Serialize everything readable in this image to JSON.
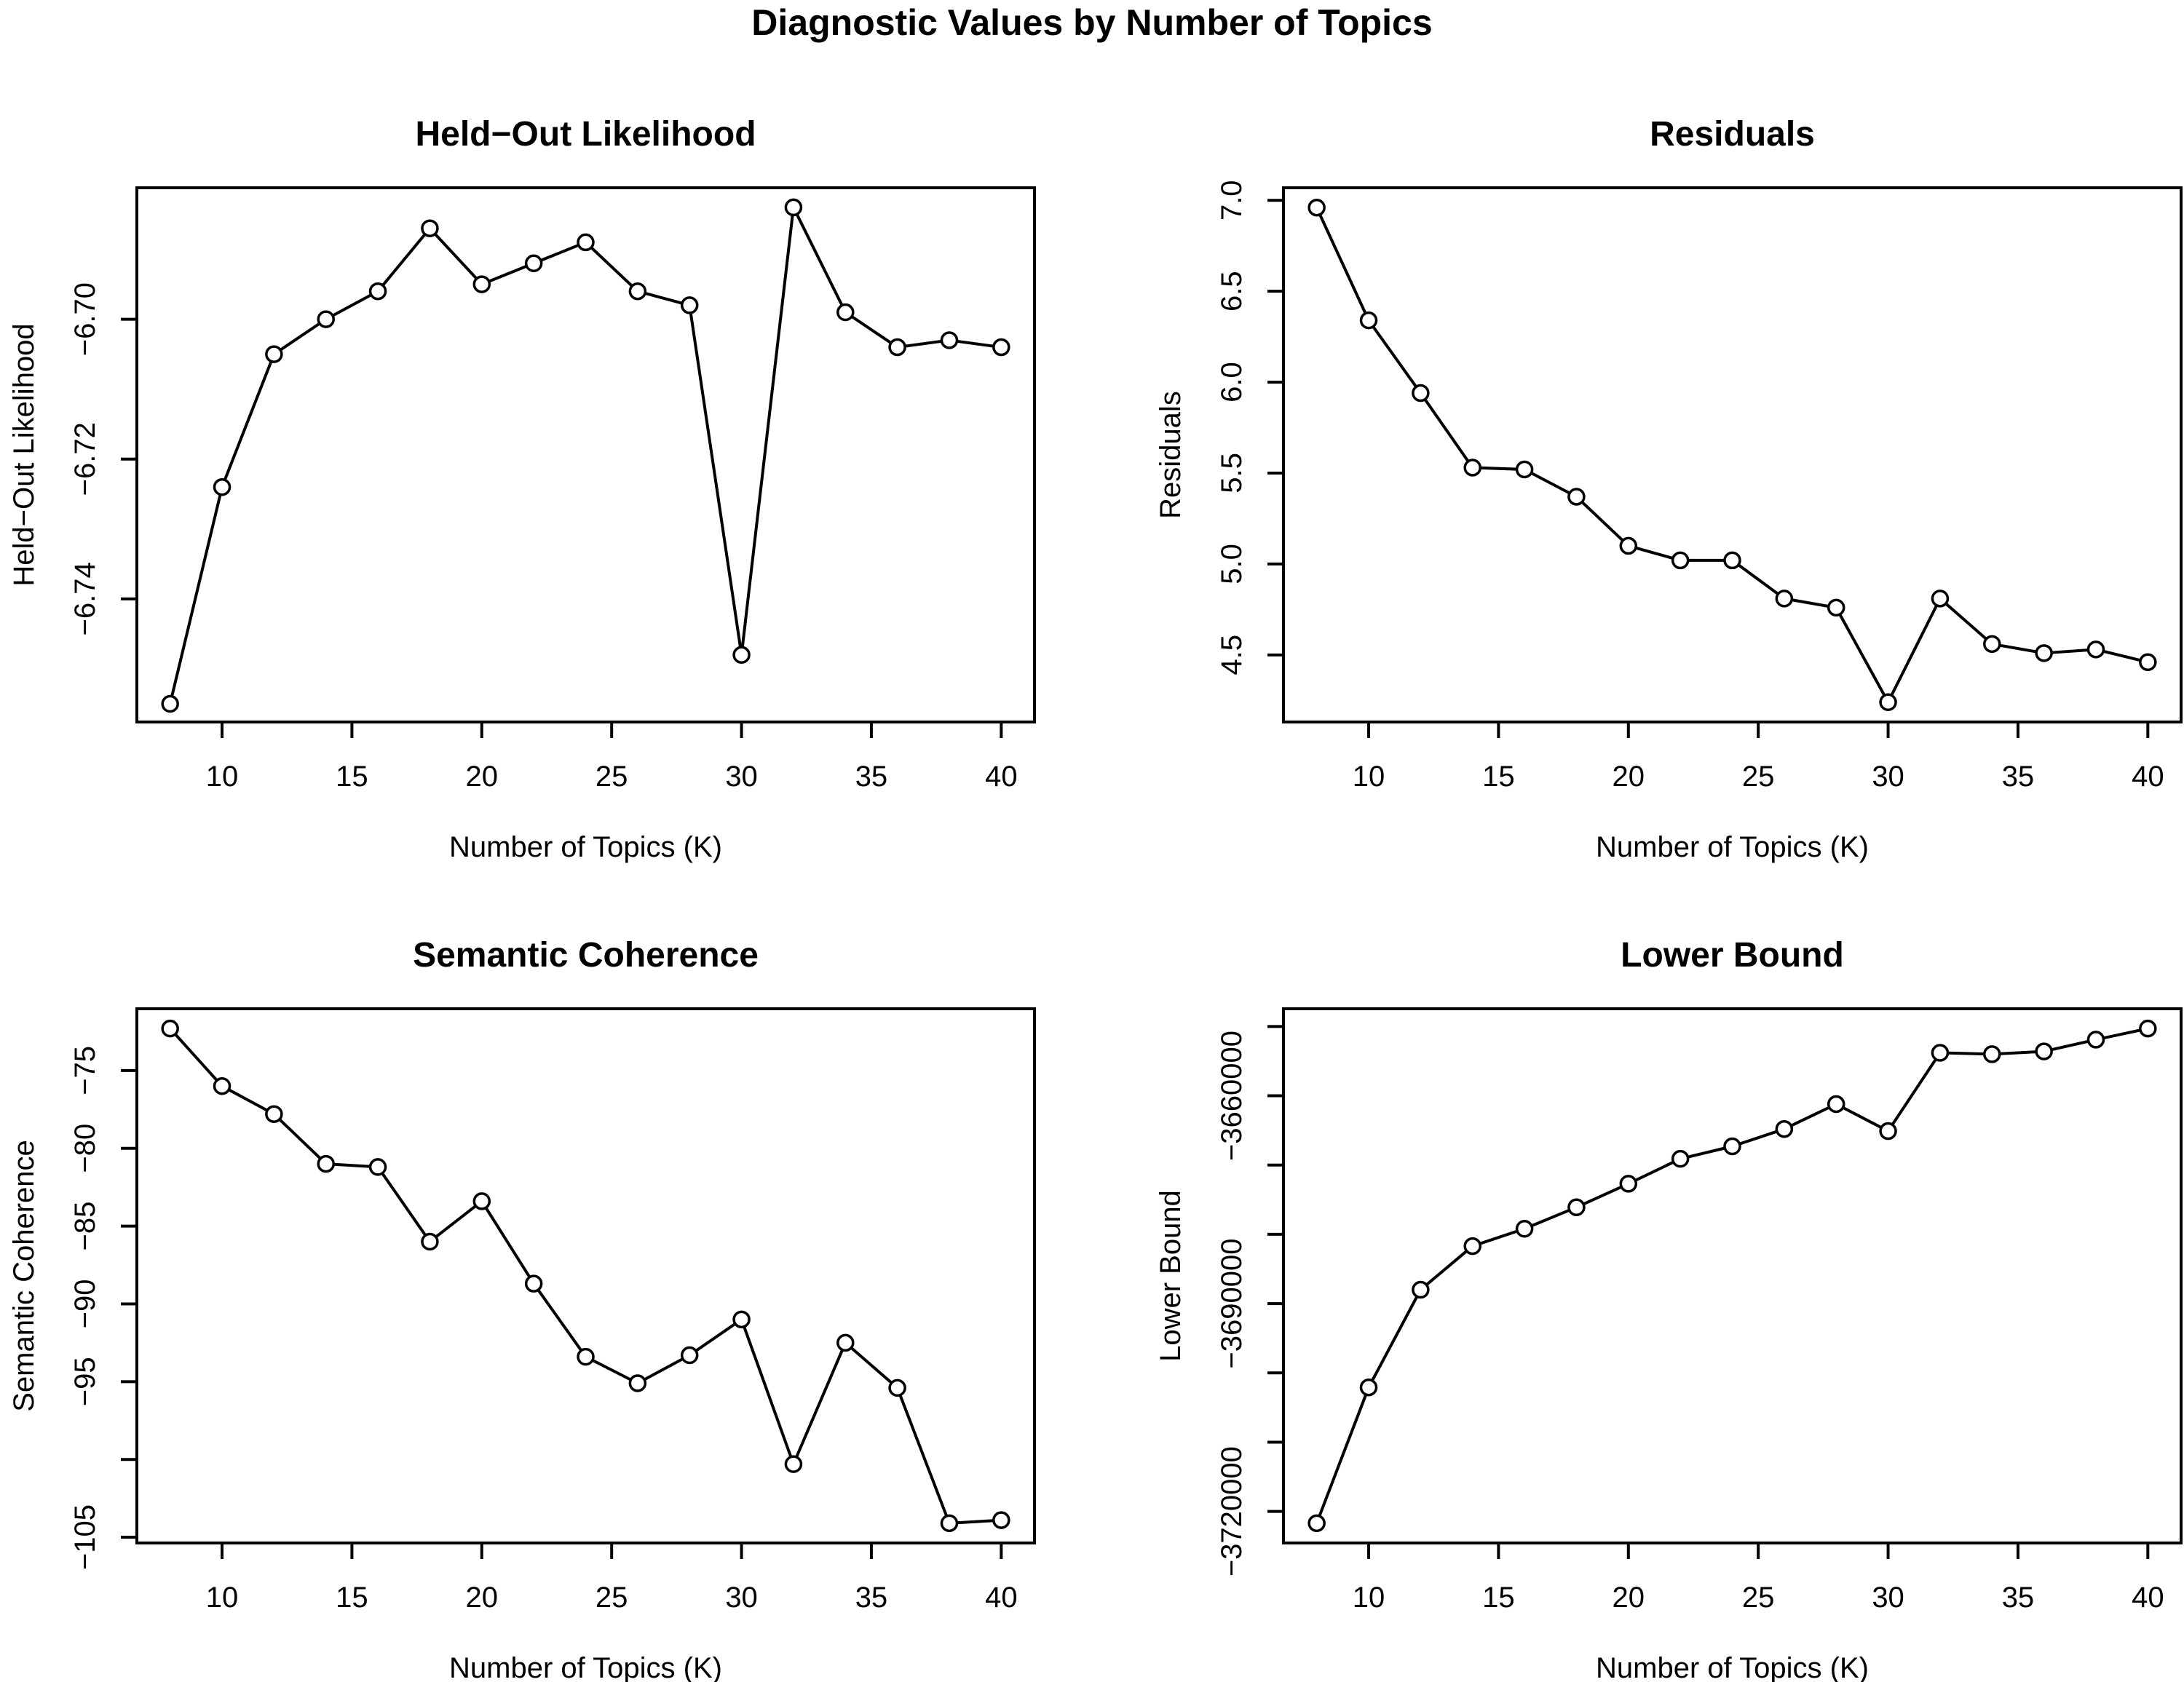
{
  "main_title": "Diagnostic Values by Number of Topics",
  "colors": {
    "foreground": "#000000",
    "background": "#ffffff"
  },
  "chart_data": [
    {
      "id": "held-out-likelihood",
      "type": "line",
      "title": "Held−Out Likelihood",
      "xlabel": "Number of Topics (K)",
      "ylabel": "Held−Out Likelihood",
      "marker": "open-circle",
      "grid": false,
      "x": [
        8,
        10,
        12,
        14,
        16,
        18,
        20,
        22,
        24,
        26,
        28,
        30,
        32,
        34,
        36,
        38,
        40
      ],
      "y": [
        -6.755,
        -6.724,
        -6.705,
        -6.7,
        -6.696,
        -6.687,
        -6.695,
        -6.692,
        -6.689,
        -6.696,
        -6.698,
        -6.748,
        -6.684,
        -6.699,
        -6.704,
        -6.703,
        -6.704
      ],
      "xlim": [
        6.72,
        41.28
      ],
      "ylim": [
        -6.7576,
        -6.6812
      ],
      "xticks": [
        10,
        15,
        20,
        25,
        30,
        35,
        40
      ],
      "xtick_labels": [
        "10",
        "15",
        "20",
        "25",
        "30",
        "35",
        "40"
      ],
      "yticks": [
        -6.74,
        -6.72,
        -6.7
      ],
      "ytick_labels": [
        "−6.74",
        "−6.72",
        "−6.70"
      ]
    },
    {
      "id": "residuals",
      "type": "line",
      "title": "Residuals",
      "xlabel": "Number of Topics (K)",
      "ylabel": "Residuals",
      "marker": "open-circle",
      "grid": false,
      "x": [
        8,
        10,
        12,
        14,
        16,
        18,
        20,
        22,
        24,
        26,
        28,
        30,
        32,
        34,
        36,
        38,
        40
      ],
      "y": [
        6.96,
        6.34,
        5.94,
        5.53,
        5.52,
        5.37,
        5.1,
        5.02,
        5.02,
        4.81,
        4.76,
        4.24,
        4.81,
        4.56,
        4.51,
        4.53,
        4.46
      ],
      "xlim": [
        6.72,
        41.28
      ],
      "ylim": [
        4.131,
        7.069
      ],
      "xticks": [
        10,
        15,
        20,
        25,
        30,
        35,
        40
      ],
      "xtick_labels": [
        "10",
        "15",
        "20",
        "25",
        "30",
        "35",
        "40"
      ],
      "yticks": [
        4.5,
        5.0,
        5.5,
        6.0,
        6.5,
        7.0
      ],
      "ytick_labels": [
        "4.5",
        "5.0",
        "5.5",
        "6.0",
        "6.5",
        "7.0"
      ]
    },
    {
      "id": "semantic-coherence",
      "type": "line",
      "title": "Semantic Coherence",
      "xlabel": "Number of Topics (K)",
      "ylabel": "Semantic Coherence",
      "marker": "open-circle",
      "grid": false,
      "x": [
        8,
        10,
        12,
        14,
        16,
        18,
        20,
        22,
        24,
        26,
        28,
        30,
        32,
        34,
        36,
        38,
        40
      ],
      "y": [
        -72.3,
        -76.0,
        -77.8,
        -81.0,
        -81.2,
        -86.0,
        -83.4,
        -88.7,
        -93.4,
        -95.1,
        -93.3,
        -91.0,
        -100.3,
        -92.5,
        -95.4,
        -104.1,
        -103.9
      ],
      "xlim": [
        6.72,
        41.28
      ],
      "ylim": [
        -105.37,
        -71.03
      ],
      "xticks": [
        10,
        15,
        20,
        25,
        30,
        35,
        40
      ],
      "xtick_labels": [
        "10",
        "15",
        "20",
        "25",
        "30",
        "35",
        "40"
      ],
      "yticks": [
        -105,
        -100,
        -95,
        -90,
        -85,
        -80,
        -75
      ],
      "ytick_labels": [
        "−105",
        "",
        "−95",
        "−90",
        "−85",
        "−80",
        "−75"
      ]
    },
    {
      "id": "lower-bound",
      "type": "line",
      "title": "Lower Bound",
      "xlabel": "Number of Topics (K)",
      "ylabel": "Lower Bound",
      "marker": "open-circle",
      "grid": false,
      "x": [
        8,
        10,
        12,
        14,
        16,
        18,
        20,
        22,
        24,
        26,
        28,
        30,
        32,
        34,
        36,
        38,
        40
      ],
      "y": [
        -3721700,
        -3702100,
        -3688000,
        -3681700,
        -3679200,
        -3676100,
        -3672700,
        -3669100,
        -3667300,
        -3664800,
        -3661200,
        -3665100,
        -3653800,
        -3654000,
        -3653600,
        -3651900,
        -3650300
      ],
      "xlim": [
        6.72,
        41.28
      ],
      "ylim": [
        -3724556,
        -3647444
      ],
      "xticks": [
        10,
        15,
        20,
        25,
        30,
        35,
        40
      ],
      "xtick_labels": [
        "10",
        "15",
        "20",
        "25",
        "30",
        "35",
        "40"
      ],
      "yticks": [
        -3720000,
        -3710000,
        -3700000,
        -3690000,
        -3680000,
        -3670000,
        -3660000,
        -3650000
      ],
      "ytick_labels": [
        "−3720000",
        "",
        "",
        "−3690000",
        "",
        "",
        "−3660000",
        ""
      ]
    }
  ]
}
